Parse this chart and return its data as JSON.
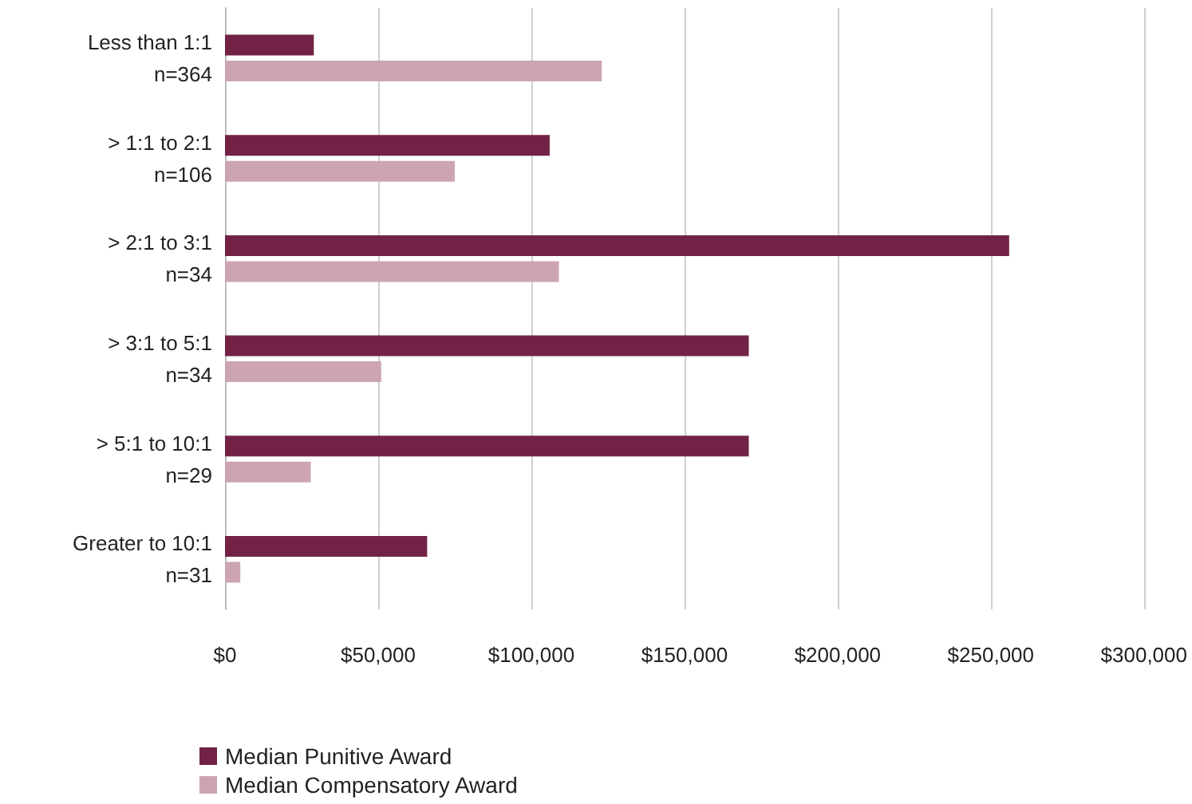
{
  "chart_data": {
    "type": "bar",
    "orientation": "horizontal",
    "categories": [
      "Less than 1:1\nn=364",
      "> 1:1 to 2:1\nn=106",
      "> 2:1 to 3:1\nn=34",
      "> 3:1 to 5:1\nn=34",
      "> 5:1 to 10:1\nn=29",
      "Greater to 10:1\nn=31"
    ],
    "series": [
      {
        "name": "Median Punitive Award",
        "color": "#722345",
        "values": [
          29000,
          106000,
          256000,
          171000,
          171000,
          66000
        ]
      },
      {
        "name": "Median Compensatory Award",
        "color": "#cda4b3",
        "values": [
          123000,
          75000,
          109000,
          51000,
          28000,
          5000
        ]
      }
    ],
    "xlim": [
      0,
      300000
    ],
    "xticks": [
      {
        "value": 0,
        "label": "$0"
      },
      {
        "value": 50000,
        "label": "$50,000"
      },
      {
        "value": 100000,
        "label": "$100,000"
      },
      {
        "value": 150000,
        "label": "$150,000"
      },
      {
        "value": 200000,
        "label": "$200,000"
      },
      {
        "value": 250000,
        "label": "$250,000"
      },
      {
        "value": 300000,
        "label": "$300,000"
      }
    ],
    "grid": "x",
    "legend": "bottom"
  }
}
